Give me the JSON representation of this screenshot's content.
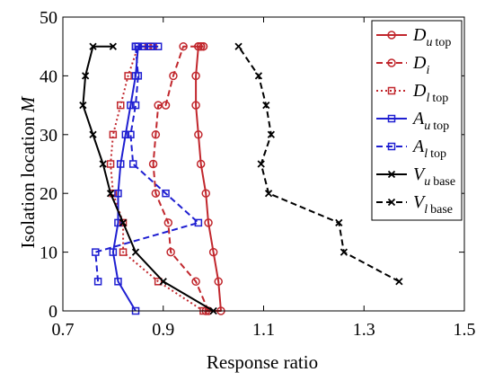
{
  "chart_data": {
    "type": "line",
    "xlabel": "Response ratio",
    "ylabel_main": "Isolation location",
    "ylabel_symbol": "M",
    "xlim": [
      0.7,
      1.5
    ],
    "ylim": [
      0,
      50
    ],
    "xticks": [
      "0.7",
      "0.9",
      "1.1",
      "1.3",
      "1.5"
    ],
    "yticks": [
      "0",
      "10",
      "20",
      "30",
      "40",
      "50"
    ],
    "grid": false,
    "legend_position": "top-right",
    "series": [
      {
        "name": "D u top",
        "sym": "D",
        "sub": "u",
        "subrest": "top",
        "color": "#c1272d",
        "style": "solid",
        "marker": "circle",
        "x": [
          0.985,
          1.015,
          1.01,
          1.0,
          0.99,
          0.985,
          0.975,
          0.97,
          0.965,
          0.965,
          0.97,
          0.975,
          0.975,
          0.98,
          0.98
        ],
        "y": [
          0,
          0,
          5,
          10,
          15,
          20,
          25,
          30,
          35,
          40,
          45,
          45,
          45,
          45,
          45
        ]
      },
      {
        "name": "D i",
        "sym": "D",
        "sub": "i",
        "subrest": "",
        "color": "#c1272d",
        "style": "dashed",
        "marker": "circle",
        "x": [
          0.99,
          0.965,
          0.915,
          0.91,
          0.885,
          0.88,
          0.885,
          0.89,
          0.905,
          0.92,
          0.94,
          0.97
        ],
        "y": [
          0,
          5,
          10,
          15,
          20,
          25,
          30,
          35,
          35,
          40,
          45,
          45
        ]
      },
      {
        "name": "D l top",
        "sym": "D",
        "sub": "l",
        "subrest": "top",
        "color": "#c1272d",
        "style": "dotted",
        "marker": "square",
        "x": [
          0.98,
          0.89,
          0.82,
          0.82,
          0.8,
          0.795,
          0.8,
          0.815,
          0.83,
          0.85,
          0.87,
          0.875,
          0.88
        ],
        "y": [
          0,
          5,
          10,
          15,
          20,
          25,
          30,
          35,
          40,
          45,
          45,
          45,
          45
        ]
      },
      {
        "name": "A u top",
        "sym": "A",
        "sub": "u",
        "subrest": "top",
        "color": "#1f1fd1",
        "style": "solid",
        "marker": "square",
        "x": [
          0.845,
          0.81,
          0.8,
          0.81,
          0.81,
          0.815,
          0.825,
          0.835,
          0.845,
          0.85,
          0.86,
          0.875,
          0.89
        ],
        "y": [
          0,
          5,
          10,
          15,
          20,
          25,
          30,
          35,
          40,
          45,
          45,
          45,
          45
        ]
      },
      {
        "name": "A l top",
        "sym": "A",
        "sub": "l",
        "subrest": "top",
        "color": "#1f1fd1",
        "style": "dashed",
        "marker": "square",
        "x": [
          0.77,
          0.765,
          0.97,
          0.905,
          0.84,
          0.835,
          0.845,
          0.85,
          0.845,
          0.85,
          0.845,
          0.845
        ],
        "y": [
          5,
          10,
          15,
          20,
          25,
          30,
          35,
          40,
          45,
          45,
          45,
          45
        ]
      },
      {
        "name": "V u base",
        "sym": "V",
        "sub": "u",
        "subrest": "base",
        "color": "#000000",
        "style": "solid",
        "marker": "x",
        "x": [
          1.0,
          0.9,
          0.845,
          0.82,
          0.795,
          0.78,
          0.76,
          0.74,
          0.745,
          0.76,
          0.8
        ],
        "y": [
          0,
          5,
          10,
          15,
          20,
          25,
          30,
          35,
          40,
          45,
          45
        ]
      },
      {
        "name": "V l base",
        "sym": "V",
        "sub": "l",
        "subrest": "base",
        "color": "#000000",
        "style": "dashed",
        "marker": "x",
        "x": [
          1.37,
          1.26,
          1.25,
          1.11,
          1.095,
          1.115,
          1.105,
          1.09,
          1.05
        ],
        "y": [
          5,
          10,
          15,
          20,
          25,
          30,
          35,
          40,
          45
        ]
      }
    ]
  }
}
